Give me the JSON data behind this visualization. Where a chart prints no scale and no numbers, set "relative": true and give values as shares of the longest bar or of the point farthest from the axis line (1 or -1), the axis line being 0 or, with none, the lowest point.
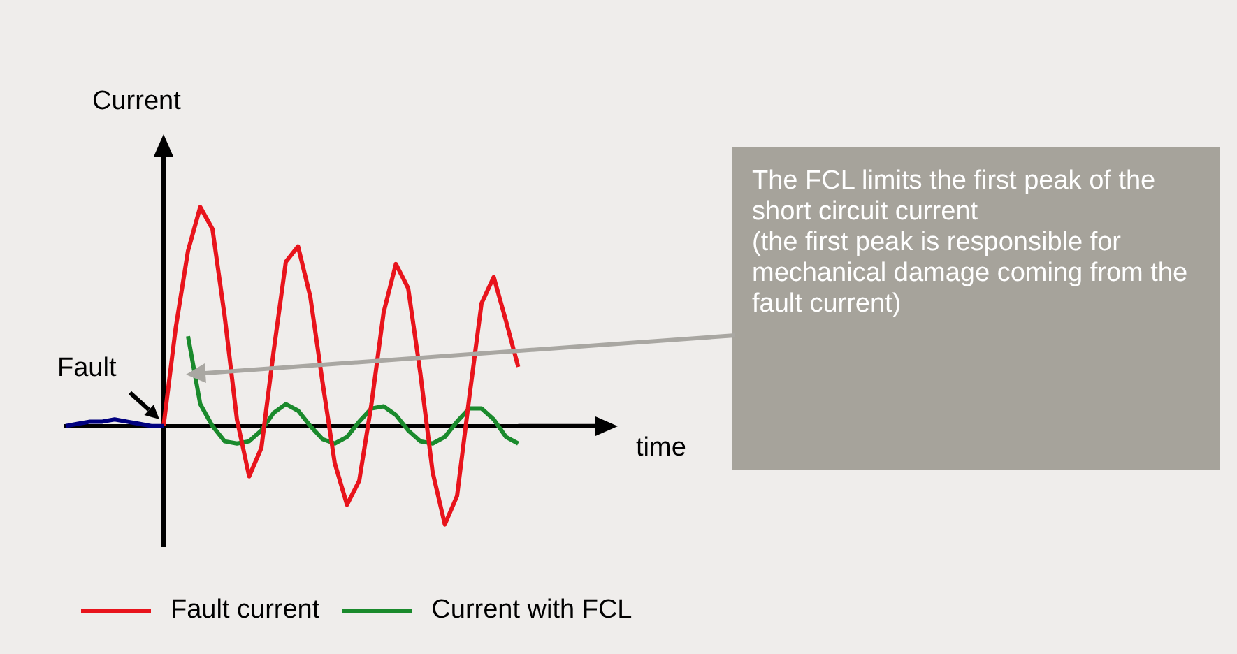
{
  "chart_data": {
    "type": "line",
    "relative": true,
    "xlabel": "time",
    "ylabel": "Current",
    "legend": "bottom",
    "marker": "none",
    "line_style": "solid",
    "categories": [
      null,
      null,
      null,
      null,
      null,
      null,
      null,
      null,
      null,
      null,
      null,
      null,
      null,
      null,
      null,
      null,
      null,
      null,
      null,
      null,
      null,
      null,
      null,
      null,
      null,
      null,
      null,
      null,
      null,
      null,
      null,
      null,
      null,
      null,
      null,
      null,
      null,
      null
    ],
    "annotations": [
      "Fault",
      "The FCL limits the first peak of the short circuit current\n(the first peak is responsible for mechanical damage coming from the fault current)"
    ],
    "series": [
      {
        "color": "#00007f",
        "values": [
          0,
          0.01,
          0.02,
          0.02,
          0.03,
          0.02,
          0.01,
          0,
          0,
          null,
          null,
          null,
          null,
          null,
          null,
          null,
          null,
          null,
          null,
          null,
          null,
          null,
          null,
          null,
          null,
          null,
          null,
          null,
          null,
          null,
          null,
          null,
          null,
          null,
          null,
          null,
          null,
          null
        ]
      },
      {
        "name": "Fault current",
        "color": "#e8141c",
        "values": [
          null,
          null,
          null,
          null,
          null,
          null,
          null,
          null,
          0,
          0.45,
          0.8,
          1,
          0.9,
          0.5,
          0.03,
          -0.23,
          -0.1,
          0.34,
          0.75,
          0.82,
          0.59,
          0.2,
          -0.17,
          -0.36,
          -0.25,
          0.1,
          0.52,
          0.74,
          0.63,
          0.24,
          -0.21,
          -0.45,
          -0.32,
          0.13,
          0.56,
          0.68,
          0.48,
          0.27
        ]
      },
      {
        "name": "Current with FCL",
        "color": "#1a8a2c",
        "values": [
          null,
          null,
          null,
          null,
          null,
          null,
          null,
          null,
          null,
          null,
          0.41,
          0.1,
          0,
          -0.07,
          -0.08,
          -0.07,
          -0.02,
          0.06,
          0.1,
          0.07,
          0,
          -0.06,
          -0.08,
          -0.05,
          0.02,
          0.08,
          0.09,
          0.05,
          -0.02,
          -0.07,
          -0.08,
          -0.05,
          0.02,
          0.08,
          0.08,
          0.03,
          -0.05,
          -0.08
        ]
      }
    ]
  }
}
